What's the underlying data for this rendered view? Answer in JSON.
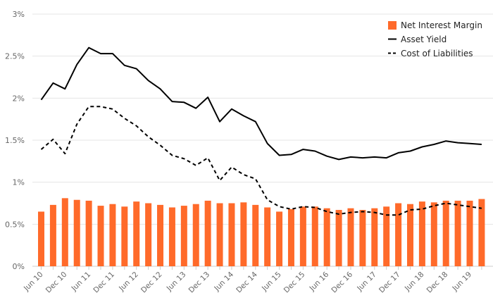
{
  "chart_data": {
    "type": "bar",
    "colors": {
      "bars": "#ff6a2a",
      "asset_yield": "#000000",
      "cost": "#000000",
      "grid": "#e4e4e4"
    },
    "ylim": [
      0,
      3
    ],
    "yticks": [
      0,
      0.5,
      1,
      1.5,
      2,
      2.5,
      3
    ],
    "ytick_labels": [
      "0%",
      "0.5%",
      "1%",
      "1.5%",
      "2%",
      "2.5%",
      "3%"
    ],
    "categories": [
      "Jun 10",
      "Sep 10",
      "Dec 10",
      "Mar 11",
      "Jun 11",
      "Sep 11",
      "Dec 11",
      "Mar 12",
      "Jun 12",
      "Sep 12",
      "Dec 12",
      "Mar 13",
      "Jun 13",
      "Sep 13",
      "Dec 13",
      "Mar 14",
      "Jun 14",
      "Sep 14",
      "Dec 14",
      "Mar 15",
      "Jun 15",
      "Sep 15",
      "Dec 15",
      "Mar 16",
      "Jun 16",
      "Sep 16",
      "Dec 16",
      "Mar 17",
      "Jun 17",
      "Sep 17",
      "Dec 17",
      "Mar 18",
      "Jun 18",
      "Sep 18",
      "Dec 18",
      "Mar 19",
      "Jun 19",
      "Sep 19"
    ],
    "xtick_labels": [
      "Jun 10",
      "",
      "Dec 10",
      "",
      "Jun 11",
      "",
      "Dec 11",
      "",
      "Jun 12",
      "",
      "Dec 12",
      "",
      "Jun 13",
      "",
      "Dec 13",
      "",
      "Jun 14",
      "",
      "Dec 14",
      "",
      "Jun 15",
      "",
      "Dec 15",
      "",
      "Jun 16",
      "",
      "Dec 16",
      "",
      "Jun 17",
      "",
      "Dec 17",
      "",
      "Jun 18",
      "",
      "Dec 18",
      "",
      "Jun 19",
      ""
    ],
    "legend_position": "top-right",
    "series": [
      {
        "name": "Net Interest Margin",
        "type": "bar",
        "values": [
          0.65,
          0.73,
          0.81,
          0.79,
          0.78,
          0.72,
          0.74,
          0.71,
          0.77,
          0.75,
          0.73,
          0.7,
          0.72,
          0.74,
          0.78,
          0.75,
          0.75,
          0.76,
          0.73,
          0.7,
          0.65,
          0.68,
          0.71,
          0.71,
          0.69,
          0.67,
          0.69,
          0.67,
          0.69,
          0.71,
          0.75,
          0.74,
          0.77,
          0.76,
          0.78,
          0.78,
          0.78,
          0.8
        ]
      },
      {
        "name": "Asset Yield",
        "type": "line",
        "dash": "solid",
        "values": [
          1.98,
          2.18,
          2.11,
          2.4,
          2.6,
          2.53,
          2.53,
          2.39,
          2.35,
          2.21,
          2.11,
          1.96,
          1.95,
          1.88,
          2.01,
          1.72,
          1.87,
          1.79,
          1.72,
          1.46,
          1.32,
          1.33,
          1.39,
          1.37,
          1.31,
          1.27,
          1.3,
          1.29,
          1.3,
          1.29,
          1.35,
          1.37,
          1.42,
          1.45,
          1.49,
          1.47,
          1.46,
          1.45
        ]
      },
      {
        "name": "Cost of Liabilities",
        "type": "line",
        "dash": "dashed",
        "values": [
          1.39,
          1.51,
          1.34,
          1.69,
          1.9,
          1.9,
          1.87,
          1.76,
          1.67,
          1.54,
          1.44,
          1.32,
          1.28,
          1.2,
          1.29,
          1.02,
          1.18,
          1.09,
          1.04,
          0.79,
          0.71,
          0.68,
          0.71,
          0.7,
          0.65,
          0.62,
          0.64,
          0.65,
          0.64,
          0.61,
          0.61,
          0.67,
          0.68,
          0.72,
          0.75,
          0.73,
          0.71,
          0.69
        ]
      }
    ]
  }
}
